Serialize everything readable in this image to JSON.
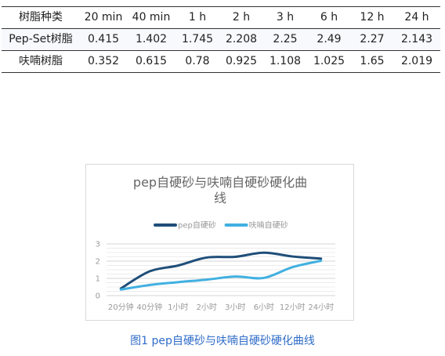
{
  "table": {
    "headers": [
      "树脂种类",
      "20 min",
      "40 min",
      "1 h",
      "2 h",
      "3 h",
      "6 h",
      "12 h",
      "24 h"
    ],
    "rows": [
      [
        "Pep-Set树脂",
        "0.415",
        "1.402",
        "1.745",
        "2.208",
        "2.25",
        "2.49",
        "2.27",
        "2.143"
      ],
      [
        "呋喃树脂",
        "0.352",
        "0.615",
        "0.78",
        "0.925",
        "1.108",
        "1.025",
        "1.65",
        "2.019"
      ]
    ]
  },
  "chart_data": {
    "type": "line",
    "title": "pep自硬砂与呋喃自硬砂硬化曲线",
    "xlabel": "",
    "ylabel": "",
    "categories": [
      "20分钟",
      "40分钟",
      "1小时",
      "2小时",
      "3小时",
      "6小时",
      "12小时",
      "24小时"
    ],
    "ylim": [
      0,
      3
    ],
    "yticks": [
      "0",
      "1",
      "2",
      "3"
    ],
    "grid": true,
    "legend_position": "top",
    "series": [
      {
        "name": "pep自硬砂",
        "color": "#1f4e79",
        "values": [
          0.415,
          1.402,
          1.745,
          2.208,
          2.25,
          2.49,
          2.27,
          2.143
        ]
      },
      {
        "name": "呋喃自硬砂",
        "color": "#41b0e0",
        "values": [
          0.352,
          0.615,
          0.78,
          0.925,
          1.108,
          1.025,
          1.65,
          2.019
        ]
      }
    ]
  },
  "caption": "图1 pep自硬砂与呋喃自硬砂硬化曲线"
}
